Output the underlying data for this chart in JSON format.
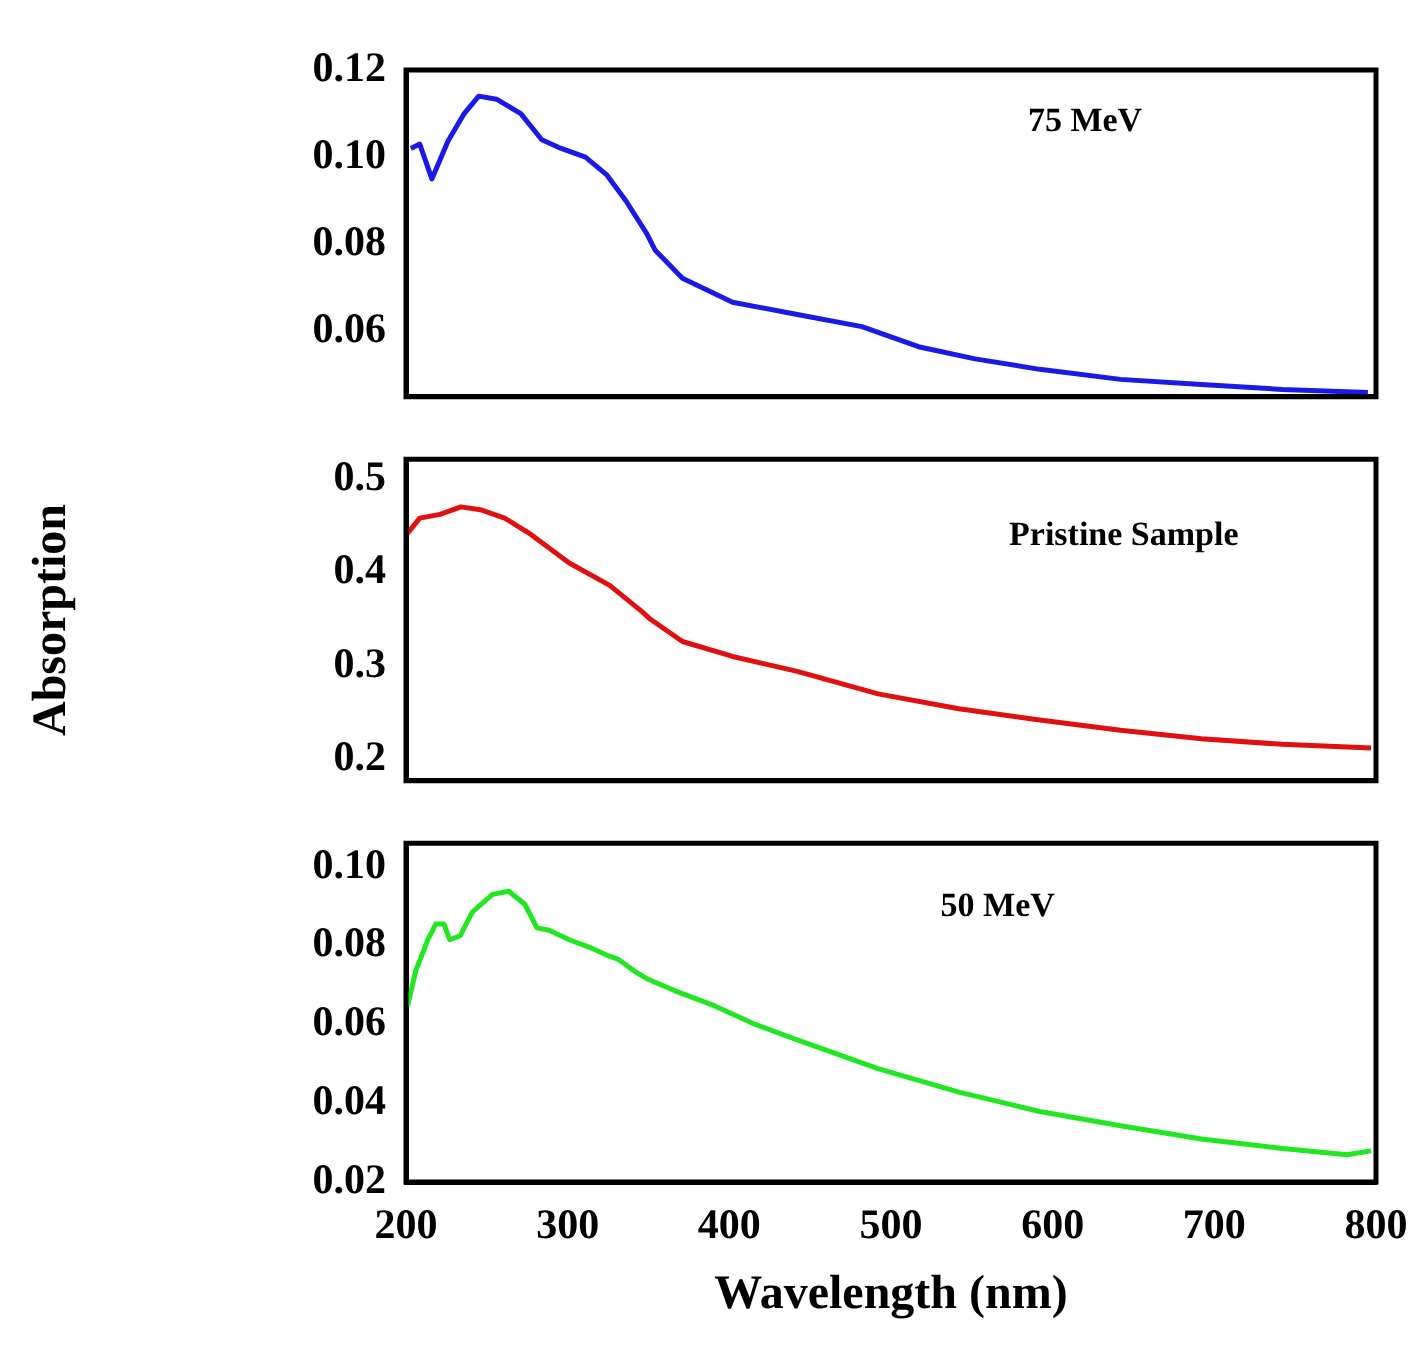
{
  "chart_data": [
    {
      "type": "line",
      "annotations": [
        "75 MeV"
      ],
      "xlim": [
        200,
        800
      ],
      "xticks": [
        200,
        300,
        400,
        500,
        600,
        700,
        800
      ],
      "ylim": [
        0.045,
        0.12
      ],
      "yticks": [
        0.12,
        {
          "value": 0.1,
          "label": "0.10"
        },
        0.08,
        0.06
      ],
      "tick_labels": "y",
      "legend": false,
      "marker": "none",
      "line_style": "solid",
      "series": [
        {
          "color": "#1a1ae6",
          "x": [
            203,
            208.5,
            216,
            226,
            236,
            245,
            256,
            271,
            284,
            296,
            311,
            324,
            336,
            349,
            354,
            371,
            402,
            442,
            482,
            517,
            552,
            592,
            642,
            692,
            742,
            795
          ],
          "values": [
            0.102,
            0.103,
            0.095,
            0.1037,
            0.11,
            0.114,
            0.1133,
            0.11,
            0.104,
            0.102,
            0.1,
            0.096,
            0.09,
            0.0824,
            0.0787,
            0.0722,
            0.0667,
            0.0639,
            0.0611,
            0.0565,
            0.0537,
            0.0513,
            0.049,
            0.0478,
            0.0467,
            0.046
          ]
        }
      ]
    },
    {
      "type": "line",
      "annotations": [
        "Pristine Sample"
      ],
      "ylabel": "Absorption",
      "xlim": [
        200,
        800
      ],
      "xticks": [
        200,
        300,
        400,
        500,
        600,
        700,
        800
      ],
      "ylim": [
        0.177,
        0.521
      ],
      "yticks": [
        0.5,
        0.4,
        0.3,
        0.2
      ],
      "tick_labels": "y",
      "legend": false,
      "marker": "none",
      "line_style": "solid",
      "series": [
        {
          "color": "#e01010",
          "x": [
            201,
            208.5,
            221,
            234,
            246,
            261,
            276,
            301,
            326,
            346,
            351,
            371,
            402,
            442,
            492,
            542,
            592,
            642,
            692,
            742,
            797
          ],
          "values": [
            0.442,
            0.458,
            0.462,
            0.47,
            0.467,
            0.458,
            0.442,
            0.41,
            0.386,
            0.358,
            0.35,
            0.326,
            0.31,
            0.294,
            0.27,
            0.254,
            0.242,
            0.231,
            0.222,
            0.216,
            0.212
          ]
        }
      ]
    },
    {
      "type": "line",
      "annotations": [
        "50 MeV"
      ],
      "xlabel": "Wavelength (nm)",
      "xlim": [
        200,
        800
      ],
      "xticks": [
        200,
        300,
        400,
        500,
        600,
        700,
        800
      ],
      "ylim": [
        0.02,
        0.106
      ],
      "yticks": [
        {
          "value": 0.1,
          "label": "0.10"
        },
        0.08,
        0.06,
        0.04,
        0.02
      ],
      "legend": false,
      "marker": "none",
      "line_style": "solid",
      "series": [
        {
          "color": "#22e622",
          "x": [
            201,
            206,
            213.5,
            218.5,
            223.5,
            227,
            233.5,
            241,
            253.5,
            263.5,
            273.5,
            281,
            288.5,
            301,
            314,
            324,
            331,
            341,
            349,
            366,
            391,
            416,
            442,
            492,
            542,
            592,
            642,
            692,
            742,
            782,
            797
          ],
          "values": [
            0.0647,
            0.0736,
            0.0815,
            0.0855,
            0.0855,
            0.0815,
            0.0825,
            0.0885,
            0.093,
            0.0938,
            0.0905,
            0.0845,
            0.0839,
            0.0815,
            0.0795,
            0.0776,
            0.0766,
            0.0736,
            0.0716,
            0.0686,
            0.0647,
            0.06,
            0.0561,
            0.0488,
            0.0428,
            0.0379,
            0.0343,
            0.0309,
            0.0285,
            0.0269,
            0.0279
          ]
        }
      ]
    }
  ]
}
